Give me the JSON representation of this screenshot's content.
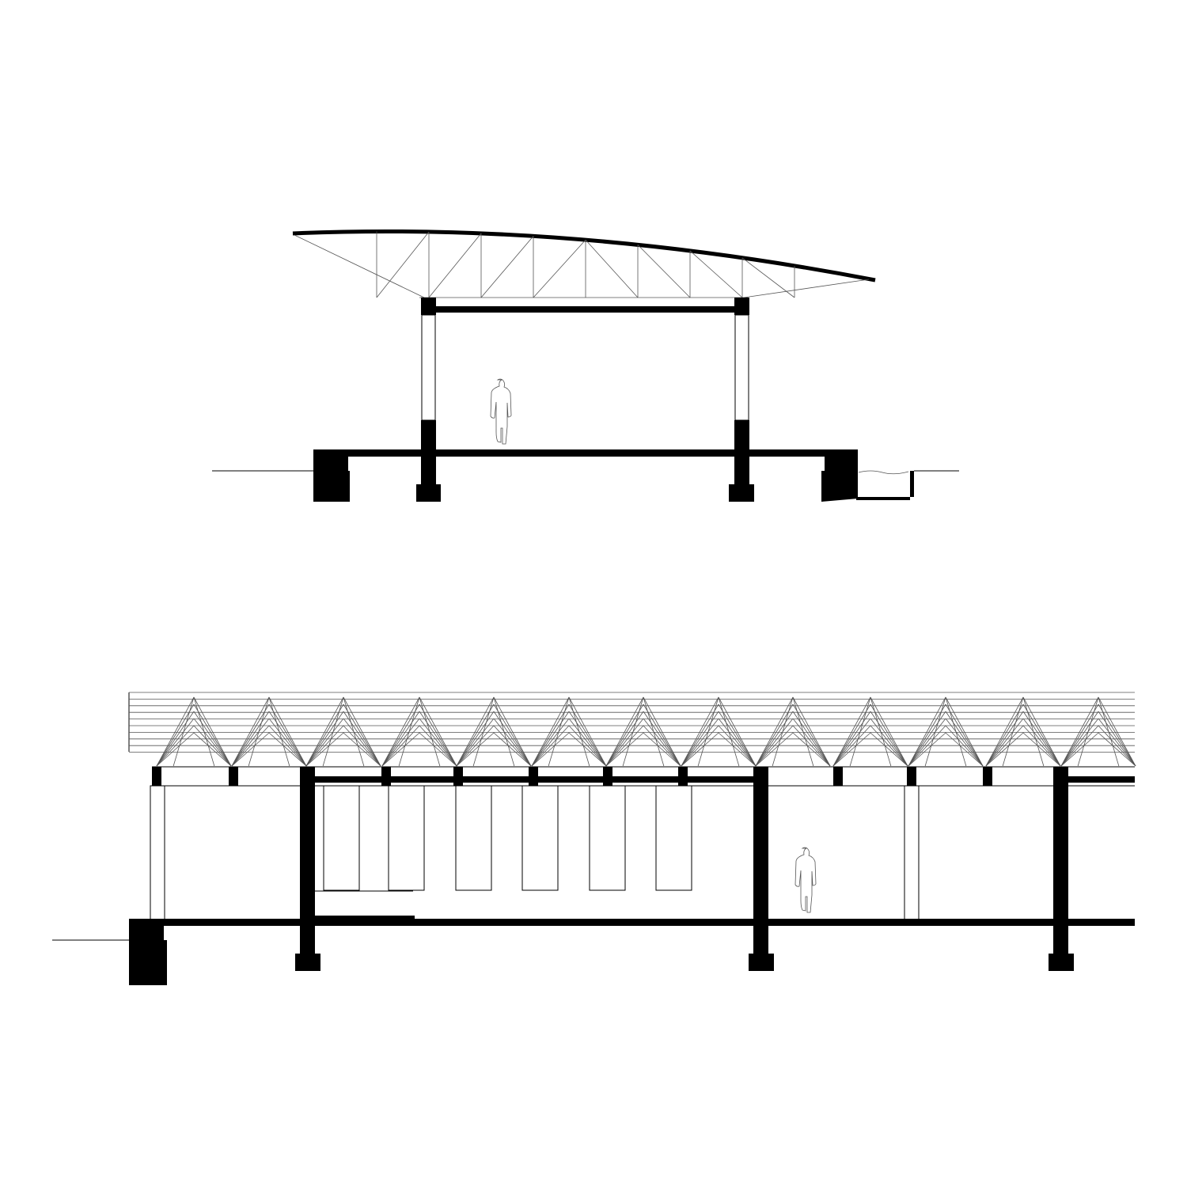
{
  "drawing": {
    "type": "architectural-sections",
    "line_color": "#000000",
    "background": "#ffffff",
    "sections": [
      {
        "id": "cross-section",
        "roof": "curved-truss",
        "columns": 2,
        "human_figures": 1,
        "features": [
          "curved-roof-truss",
          "tie-beam",
          "floor-slab",
          "column-footings",
          "edge-foundations",
          "drainage-channel",
          "ground-line"
        ]
      },
      {
        "id": "longitudinal-section",
        "roof": "folded-plate-lattice",
        "roof_modules": 13,
        "human_figures": 1,
        "features": [
          "folded-plate-roof",
          "roof-purlins",
          "clerestory-band",
          "floor-slab",
          "column-footings",
          "edge-foundation",
          "window-panels",
          "ground-line"
        ]
      }
    ]
  }
}
